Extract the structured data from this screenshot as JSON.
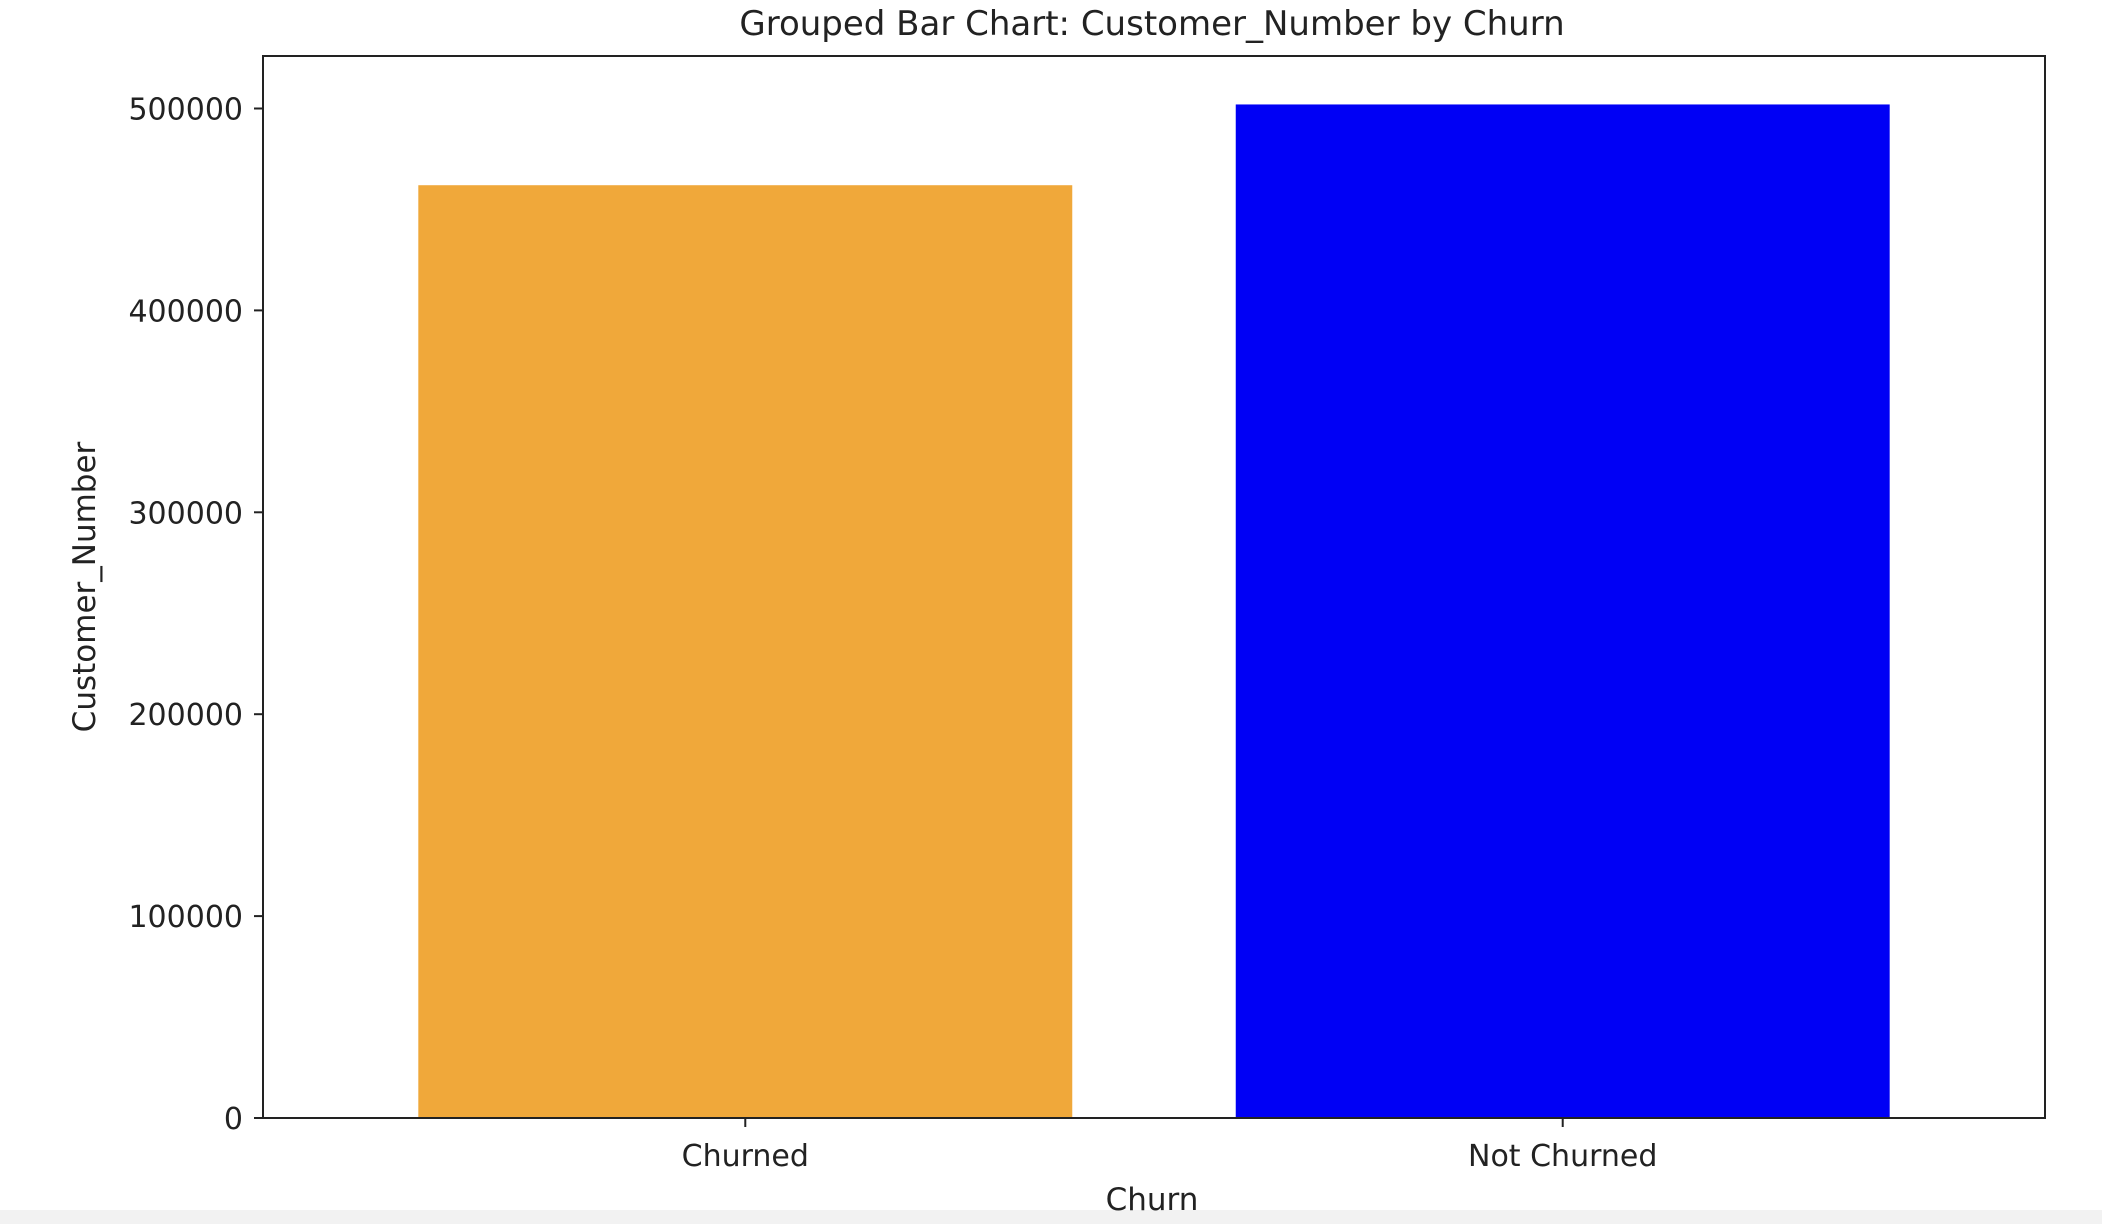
{
  "chart_data": {
    "type": "bar",
    "title": "Grouped Bar Chart: Customer_Number by Churn",
    "xlabel": "Churn",
    "ylabel": "Customer_Number",
    "categories": [
      "Churned",
      "Not Churned"
    ],
    "values": [
      462000,
      502000
    ],
    "colors": [
      "#f0a83a",
      "#0000f5"
    ],
    "ylim": [
      0,
      526000
    ],
    "yticks": [
      0,
      100000,
      200000,
      300000,
      400000,
      500000
    ],
    "grid": false,
    "legend": "none"
  }
}
